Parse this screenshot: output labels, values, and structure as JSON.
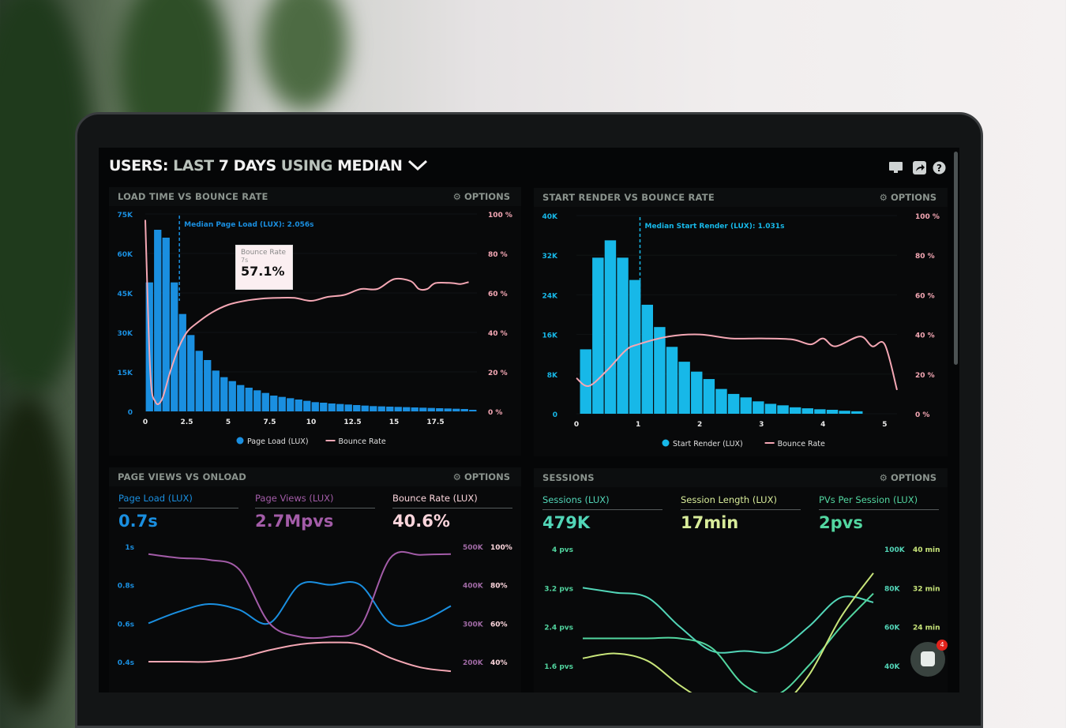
{
  "header": {
    "title_parts": [
      "USERS:",
      "LAST",
      "7 DAYS",
      "USING",
      "MEDIAN"
    ],
    "dropdown_icon": "chevron-down-icon",
    "icons": [
      "monitor-icon",
      "share-icon",
      "help-icon"
    ]
  },
  "colors": {
    "blue": "#1a8fe0",
    "cyan": "#17b8e8",
    "pink": "#f4a7b4",
    "purple": "#a35ca8",
    "teal": "#52d6b8",
    "lime": "#c8e57a",
    "green": "#52d6a0"
  },
  "panels": {
    "load_time": {
      "title": "LOAD TIME VS BOUNCE RATE",
      "options": "OPTIONS"
    },
    "start_render": {
      "title": "START RENDER VS BOUNCE RATE",
      "options": "OPTIONS"
    },
    "page_views": {
      "title": "PAGE VIEWS VS ONLOAD",
      "options": "OPTIONS",
      "kpis": [
        {
          "label": "Page Load (LUX)",
          "value": "0.7s"
        },
        {
          "label": "Page Views (LUX)",
          "value": "2.7Mpvs"
        },
        {
          "label": "Bounce Rate (LUX)",
          "value": "40.6%"
        }
      ]
    },
    "sessions": {
      "title": "SESSIONS",
      "options": "OPTIONS",
      "kpis": [
        {
          "label": "Sessions (LUX)",
          "value": "479K"
        },
        {
          "label": "Session Length (LUX)",
          "value": "17min"
        },
        {
          "label": "PVs Per Session (LUX)",
          "value": "2pvs"
        }
      ]
    }
  },
  "tooltip": {
    "series": "Bounce Rate",
    "x": "7s",
    "value": "57.1%"
  },
  "chat": {
    "badge": "4"
  },
  "chart_data": [
    {
      "type": "bar",
      "title": "LOAD TIME VS BOUNCE RATE",
      "annotation": "Median Page Load (LUX): 2.056s",
      "median": 2.056,
      "xticks": [
        "0",
        "2.5",
        "5",
        "7.5",
        "10",
        "12.5",
        "15",
        "17.5"
      ],
      "xlim": [
        0,
        20
      ],
      "yticks_left": [
        "0",
        "15K",
        "30K",
        "45K",
        "60K",
        "75K"
      ],
      "ylim_left": [
        0,
        75
      ],
      "yticks_right": [
        "0 %",
        "20 %",
        "40 %",
        "60 %",
        "80 %",
        "100 %"
      ],
      "ylim_right": [
        0,
        100
      ],
      "bin_width": 0.5,
      "series": [
        {
          "name": "Page Load (LUX)",
          "type": "bar",
          "values": [
            49,
            69,
            66,
            49,
            37,
            29,
            23,
            19.5,
            15.5,
            13,
            11.5,
            10,
            9,
            8,
            7,
            6,
            5.5,
            5,
            4.5,
            4,
            3.5,
            3.3,
            3,
            2.8,
            2.6,
            2.4,
            2.2,
            2,
            1.9,
            1.8,
            1.7,
            1.6,
            1.5,
            1.4,
            1.3,
            1.2,
            1.1,
            1,
            0.9,
            0.6
          ]
        },
        {
          "name": "Bounce Rate",
          "type": "line",
          "points": [
            [
              0,
              97
            ],
            [
              0.3,
              20
            ],
            [
              0.6,
              5
            ],
            [
              1,
              6
            ],
            [
              1.5,
              20
            ],
            [
              2,
              32
            ],
            [
              2.5,
              40
            ],
            [
              3,
              44
            ],
            [
              4,
              50
            ],
            [
              5,
              54
            ],
            [
              6,
              56
            ],
            [
              7,
              57.1
            ],
            [
              8,
              57.5
            ],
            [
              9,
              57.5
            ],
            [
              10,
              56
            ],
            [
              11,
              58
            ],
            [
              12,
              59
            ],
            [
              13,
              62
            ],
            [
              14,
              62
            ],
            [
              15,
              67
            ],
            [
              16,
              66
            ],
            [
              16.5,
              62
            ],
            [
              17,
              62
            ],
            [
              17.5,
              65
            ],
            [
              18.5,
              65
            ],
            [
              19,
              64.5
            ],
            [
              19.5,
              65.5
            ]
          ]
        }
      ],
      "legend": "bottom"
    },
    {
      "type": "bar",
      "title": "START RENDER VS BOUNCE RATE",
      "annotation": "Median Start Render (LUX): 1.031s",
      "median": 1.031,
      "xticks": [
        "0",
        "1",
        "2",
        "3",
        "4",
        "5"
      ],
      "xlim": [
        0,
        5.2
      ],
      "yticks_left": [
        "0",
        "8K",
        "16K",
        "24K",
        "32K",
        "40K"
      ],
      "ylim_left": [
        0,
        40
      ],
      "yticks_right": [
        "0 %",
        "20 %",
        "40 %",
        "60 %",
        "80 %",
        "100 %"
      ],
      "ylim_right": [
        0,
        100
      ],
      "bin_width": 0.2,
      "bin_start": 0.05,
      "series": [
        {
          "name": "Start Render (LUX)",
          "type": "bar",
          "values": [
            13,
            31.5,
            35,
            31.5,
            27,
            22,
            17.5,
            13.5,
            10.5,
            8.5,
            7,
            5,
            4,
            3.3,
            2.5,
            2,
            1.7,
            1.3,
            1.1,
            0.9,
            0.8,
            0.6,
            0.5
          ]
        },
        {
          "name": "Bounce Rate",
          "type": "line",
          "points": [
            [
              0,
              18
            ],
            [
              0.2,
              14
            ],
            [
              0.5,
              22
            ],
            [
              0.8,
              32
            ],
            [
              1,
              35
            ],
            [
              1.5,
              39
            ],
            [
              2,
              40
            ],
            [
              2.5,
              38
            ],
            [
              3,
              38
            ],
            [
              3.5,
              37.5
            ],
            [
              3.8,
              35
            ],
            [
              4,
              38
            ],
            [
              4.2,
              34
            ],
            [
              4.6,
              39
            ],
            [
              4.8,
              34
            ],
            [
              5,
              35
            ],
            [
              5.2,
              12
            ]
          ]
        }
      ],
      "legend": "bottom"
    },
    {
      "type": "line",
      "title": "PAGE VIEWS VS ONLOAD",
      "yticks_left": [
        "0.4s",
        "0.6s",
        "0.8s",
        "1s"
      ],
      "ylim_left": [
        0.4,
        1
      ],
      "yticks_right1": [
        "200K",
        "300K",
        "400K",
        "500K"
      ],
      "ylim_right1": [
        200,
        500
      ],
      "yticks_right2": [
        "40%",
        "60%",
        "80%",
        "100%"
      ],
      "ylim_right2": [
        40,
        100
      ],
      "series": [
        {
          "name": "Page Load (LUX)",
          "axis": "left",
          "values": [
            0.6,
            0.66,
            0.7,
            0.67,
            0.6,
            0.8,
            0.8,
            0.8,
            0.6,
            0.61,
            0.69
          ]
        },
        {
          "name": "Page Views (LUX)",
          "axis": "right1",
          "values": [
            480,
            470,
            465,
            440,
            300,
            265,
            265,
            290,
            470,
            478,
            480
          ]
        },
        {
          "name": "Bounce Rate (LUX)",
          "axis": "right2",
          "values": [
            40,
            40,
            40,
            42,
            46,
            49,
            50,
            49,
            42,
            37,
            35
          ]
        }
      ]
    },
    {
      "type": "line",
      "title": "SESSIONS",
      "yticks_left": [
        "1.6 pvs",
        "2.4 pvs",
        "3.2 pvs",
        "4 pvs"
      ],
      "ylim_left": [
        1.6,
        4
      ],
      "yticks_right1": [
        "40K",
        "60K",
        "80K",
        "100K"
      ],
      "ylim_right1": [
        40,
        100
      ],
      "yticks_right2": [
        "24 min",
        "32 min",
        "40 min"
      ],
      "ylim_right2": [
        16,
        40
      ],
      "series": [
        {
          "name": "PVs Per Session (LUX)",
          "axis": "left",
          "values": [
            3.2,
            3.1,
            3.0,
            2.4,
            1.9,
            1.9,
            1.9,
            2.4,
            3.0,
            2.9
          ]
        },
        {
          "name": "Sessions (LUX)",
          "axis": "right1",
          "values": [
            54,
            54,
            54,
            54,
            49,
            30,
            25,
            40,
            60,
            77
          ]
        },
        {
          "name": "Session Length (LUX)",
          "axis": "right2",
          "values": [
            17.5,
            18.5,
            17,
            12,
            8,
            6,
            7,
            14,
            26,
            35
          ]
        }
      ]
    }
  ]
}
